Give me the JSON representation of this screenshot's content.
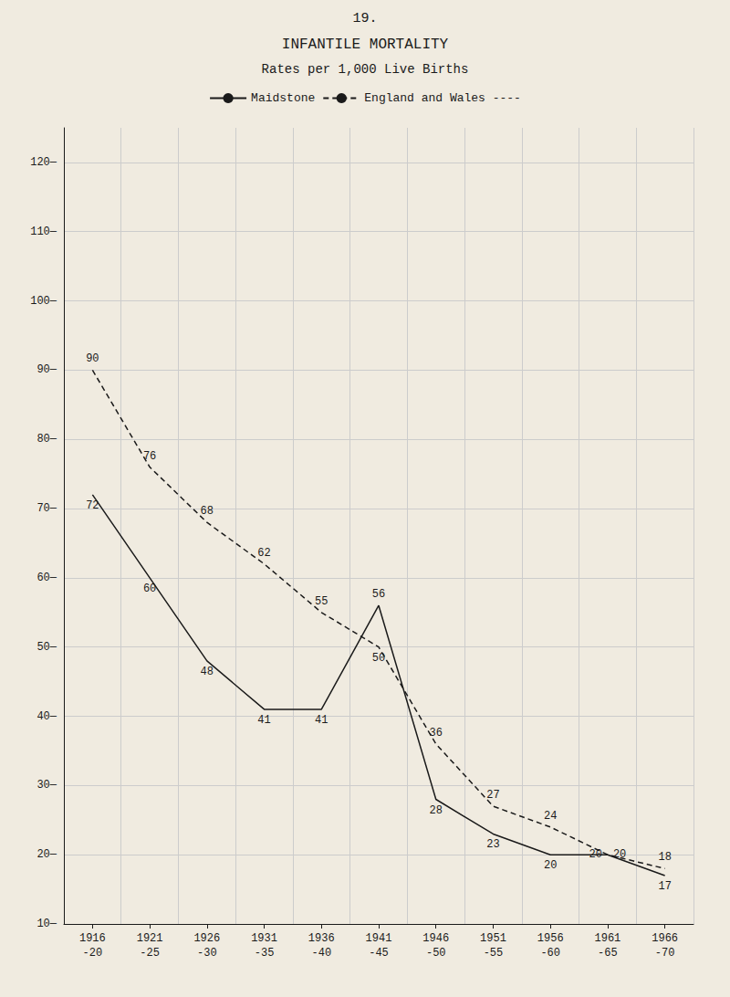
{
  "chart_data": {
    "type": "line",
    "title": "INFANTILE MORTALITY",
    "subtitle": "Rates per 1,000 Live Births",
    "annotations": [
      "19."
    ],
    "categories": [
      "1916\n-20",
      "1921\n-25",
      "1926\n-30",
      "1931\n-35",
      "1936\n-40",
      "1941\n-45",
      "1946\n-50",
      "1951\n-55",
      "1956\n-60",
      "1961\n-65",
      "1966\n-70"
    ],
    "series": [
      {
        "name": "Maidstone",
        "color": "#1a1a1a",
        "line_style": "solid",
        "values": [
          72,
          60,
          48,
          41,
          41,
          56,
          28,
          23,
          20,
          20,
          17
        ]
      },
      {
        "name": "England and Wales ----",
        "color": "#1a1a1a",
        "line_style": "dashed",
        "values": [
          90,
          76,
          68,
          62,
          55,
          50,
          36,
          27,
          24,
          20,
          18
        ]
      }
    ],
    "ylim": [
      10,
      125
    ],
    "yticks": [
      {
        "value": 10,
        "label": "10—"
      },
      {
        "value": 20,
        "label": "20—"
      },
      {
        "value": 30,
        "label": "30—"
      },
      {
        "value": 40,
        "label": "40—"
      },
      {
        "value": 50,
        "label": "50—"
      },
      {
        "value": 60,
        "label": "60—"
      },
      {
        "value": 70,
        "label": "70—"
      },
      {
        "value": 80,
        "label": "80—"
      },
      {
        "value": 90,
        "label": "90—"
      },
      {
        "value": 100,
        "label": "100—"
      },
      {
        "value": 110,
        "label": "110—"
      },
      {
        "value": 120,
        "label": "120—"
      }
    ],
    "grid": true,
    "legend": "top",
    "data_labels": true
  }
}
